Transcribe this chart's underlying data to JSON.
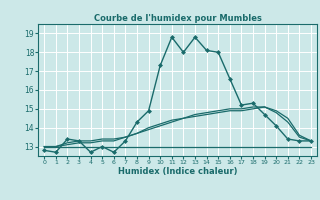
{
  "title": "Courbe de l'humidex pour Mumbles",
  "xlabel": "Humidex (Indice chaleur)",
  "bg_color": "#cce8e8",
  "grid_color": "#ffffff",
  "line_color": "#1a6b6b",
  "xlim": [
    -0.5,
    23.5
  ],
  "ylim": [
    12.5,
    19.5
  ],
  "yticks": [
    13,
    14,
    15,
    16,
    17,
    18,
    19
  ],
  "xticks": [
    0,
    1,
    2,
    3,
    4,
    5,
    6,
    7,
    8,
    9,
    10,
    11,
    12,
    13,
    14,
    15,
    16,
    17,
    18,
    19,
    20,
    21,
    22,
    23
  ],
  "lines": [
    {
      "x": [
        0,
        1,
        2,
        3,
        4,
        5,
        6,
        7,
        8,
        9,
        10,
        11,
        12,
        13,
        14,
        15,
        16,
        17,
        18,
        19,
        20,
        21,
        22,
        23
      ],
      "y": [
        12.8,
        12.7,
        13.4,
        13.3,
        12.7,
        13.0,
        12.7,
        13.3,
        14.3,
        14.9,
        17.3,
        18.8,
        18.0,
        18.8,
        18.1,
        18.0,
        16.6,
        15.2,
        15.3,
        14.7,
        14.1,
        13.4,
        13.3,
        13.3
      ],
      "marker": "D",
      "markersize": 2.0,
      "linewidth": 1.0
    },
    {
      "x": [
        0,
        1,
        2,
        3,
        4,
        5,
        6,
        7,
        8,
        9,
        10,
        11,
        12,
        13,
        14,
        15,
        16,
        17,
        18,
        19,
        20,
        21,
        22,
        23
      ],
      "y": [
        13.0,
        13.0,
        13.1,
        13.2,
        13.2,
        13.3,
        13.3,
        13.5,
        13.7,
        14.0,
        14.2,
        14.4,
        14.5,
        14.6,
        14.7,
        14.8,
        14.9,
        14.9,
        15.0,
        15.1,
        14.8,
        14.3,
        13.5,
        13.3
      ],
      "marker": null,
      "markersize": 0,
      "linewidth": 0.9
    },
    {
      "x": [
        0,
        1,
        2,
        3,
        4,
        5,
        6,
        7,
        8,
        9,
        10,
        11,
        12,
        13,
        14,
        15,
        16,
        17,
        18,
        19,
        20,
        21,
        22,
        23
      ],
      "y": [
        13.0,
        13.0,
        13.2,
        13.3,
        13.3,
        13.4,
        13.4,
        13.5,
        13.7,
        13.9,
        14.1,
        14.3,
        14.5,
        14.7,
        14.8,
        14.9,
        15.0,
        15.0,
        15.1,
        15.1,
        14.9,
        14.5,
        13.6,
        13.3
      ],
      "marker": null,
      "markersize": 0,
      "linewidth": 0.9
    },
    {
      "x": [
        0,
        1,
        2,
        3,
        4,
        5,
        6,
        7,
        8,
        9,
        10,
        11,
        12,
        13,
        14,
        15,
        16,
        17,
        18,
        19,
        20,
        21,
        22,
        23
      ],
      "y": [
        13.0,
        13.0,
        13.0,
        13.0,
        13.0,
        13.0,
        13.0,
        13.0,
        13.0,
        13.0,
        13.0,
        13.0,
        13.0,
        13.0,
        13.0,
        13.0,
        13.0,
        13.0,
        13.0,
        13.0,
        13.0,
        13.0,
        13.0,
        13.0
      ],
      "marker": null,
      "markersize": 0,
      "linewidth": 0.9
    }
  ]
}
